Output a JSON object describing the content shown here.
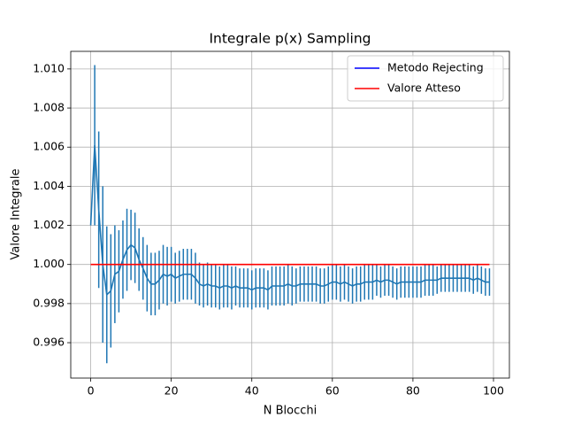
{
  "chart_data": {
    "type": "errorbar-line",
    "title": "Integrale p(x) Sampling",
    "xlabel": "N Blocchi",
    "ylabel": "Valore Integrale",
    "xlim": [
      -4.95,
      103.95
    ],
    "xticks": [
      0,
      20,
      40,
      60,
      80,
      100
    ],
    "ylim": [
      0.99419,
      1.0109
    ],
    "yticks": [
      0.996,
      0.998,
      {
        "value": 1,
        "label": "1.000"
      },
      1.002,
      1.004,
      1.006,
      1.008,
      {
        "value": 1.01,
        "label": "1.010"
      }
    ],
    "grid": true,
    "legend_position": "upper right",
    "series": [
      {
        "name": "Metodo Rejecting",
        "color": "#1f77b4",
        "legend_color": "#0000ff",
        "x": [
          0,
          1,
          2,
          3,
          4,
          5,
          6,
          7,
          8,
          9,
          10,
          11,
          12,
          13,
          14,
          15,
          16,
          17,
          18,
          19,
          20,
          21,
          22,
          23,
          24,
          25,
          26,
          27,
          28,
          29,
          30,
          31,
          32,
          33,
          34,
          35,
          36,
          37,
          38,
          39,
          40,
          41,
          42,
          43,
          44,
          45,
          46,
          47,
          48,
          49,
          50,
          51,
          52,
          53,
          54,
          55,
          56,
          57,
          58,
          59,
          60,
          61,
          62,
          63,
          64,
          65,
          66,
          67,
          68,
          69,
          70,
          71,
          72,
          73,
          74,
          75,
          76,
          77,
          78,
          79,
          80,
          81,
          82,
          83,
          84,
          85,
          86,
          87,
          88,
          89,
          90,
          91,
          92,
          93,
          94,
          95,
          96,
          97,
          98,
          99
        ],
        "values": [
          1.002,
          1.0061,
          1.0028,
          1.0,
          0.99845,
          0.99865,
          0.9995,
          0.99965,
          1.00025,
          1.00075,
          1.001,
          1.00085,
          1.00025,
          0.9998,
          0.9993,
          0.999,
          0.999,
          0.9992,
          0.9995,
          0.9994,
          0.9995,
          0.9993,
          0.9994,
          0.9995,
          0.9995,
          0.9995,
          0.9993,
          0.999,
          0.9989,
          0.999,
          0.9989,
          0.9989,
          0.9988,
          0.9989,
          0.9989,
          0.9988,
          0.9989,
          0.9988,
          0.9988,
          0.9988,
          0.9987,
          0.9988,
          0.9988,
          0.9988,
          0.9987,
          0.9989,
          0.9989,
          0.9989,
          0.9989,
          0.999,
          0.9989,
          0.9989,
          0.999,
          0.999,
          0.999,
          0.999,
          0.999,
          0.9989,
          0.9989,
          0.999,
          0.9991,
          0.9991,
          0.999,
          0.9991,
          0.999,
          0.9989,
          0.999,
          0.999,
          0.9991,
          0.9991,
          0.9991,
          0.9992,
          0.9991,
          0.9992,
          0.9992,
          0.9991,
          0.999,
          0.9991,
          0.9991,
          0.9991,
          0.9991,
          0.9991,
          0.9991,
          0.9992,
          0.9992,
          0.9992,
          0.9992,
          0.9993,
          0.9993,
          0.9993,
          0.9993,
          0.9993,
          0.9993,
          0.9993,
          0.9993,
          0.9992,
          0.9993,
          0.9992,
          0.9991,
          0.9991
        ],
        "errors": [
          0,
          0.0041,
          0.004,
          0.004,
          0.0035,
          0.0029,
          0.0025,
          0.0021,
          0.002,
          0.0021,
          0.0018,
          0.0018,
          0.0016,
          0.0016,
          0.0017,
          0.0016,
          0.0016,
          0.0015,
          0.0015,
          0.0015,
          0.0014,
          0.0013,
          0.0013,
          0.0013,
          0.0013,
          0.0013,
          0.0013,
          0.0011,
          0.0011,
          0.0011,
          0.0011,
          0.0011,
          0.0011,
          0.0011,
          0.0011,
          0.0011,
          0.001,
          0.001,
          0.001,
          0.001,
          0.001,
          0.001,
          0.001,
          0.001,
          0.001,
          0.001,
          0.001,
          0.001,
          0.001,
          0.001,
          0.001,
          0.0009,
          0.0009,
          0.0009,
          0.0009,
          0.0009,
          0.0009,
          0.0009,
          0.0009,
          0.0009,
          0.0009,
          0.0009,
          0.0009,
          0.0009,
          0.0009,
          0.0009,
          0.0009,
          0.0009,
          0.0009,
          0.0009,
          0.0009,
          0.0008,
          0.0008,
          0.0008,
          0.0008,
          0.0008,
          0.0008,
          0.0008,
          0.0008,
          0.0008,
          0.0008,
          0.0008,
          0.0008,
          0.0008,
          0.0008,
          0.0008,
          0.0007,
          0.0007,
          0.0007,
          0.0007,
          0.0007,
          0.0007,
          0.0007,
          0.0007,
          0.0007,
          0.0007,
          0.0007,
          0.0007,
          0.0007,
          0.0007
        ]
      },
      {
        "name": "Valore Atteso",
        "color": "#ff0000",
        "legend_color": "#ff0000",
        "x": [
          0,
          99
        ],
        "values": [
          1,
          1
        ]
      }
    ]
  }
}
